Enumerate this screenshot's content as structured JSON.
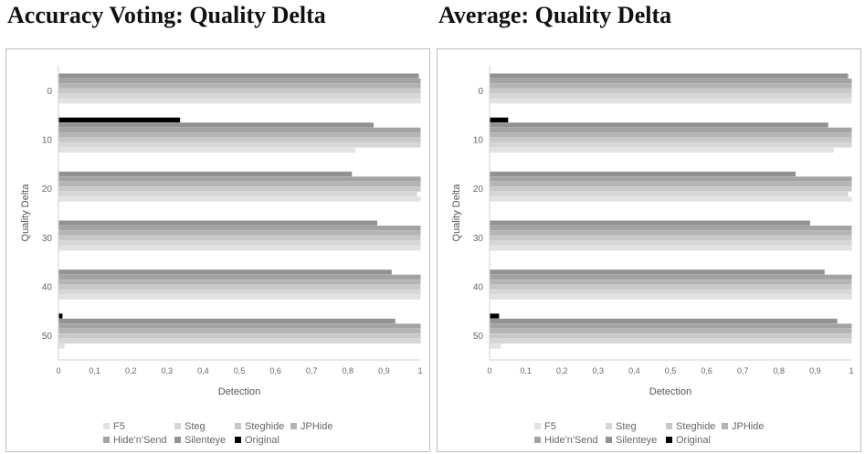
{
  "chart_data": [
    {
      "type": "bar",
      "orientation": "horizontal",
      "title": "Accuracy Voting: Quality Delta",
      "xlabel": "Detection",
      "ylabel": "Quality Delta",
      "xlim": [
        0,
        1
      ],
      "xticks": [
        "0",
        "0,1",
        "0,2",
        "0,3",
        "0,4",
        "0,5",
        "0,6",
        "0,7",
        "0,8",
        "0,9",
        "1"
      ],
      "categories": [
        "0",
        "10",
        "20",
        "30",
        "40",
        "50"
      ],
      "series": [
        {
          "name": "F5",
          "color": "#e2e2e2",
          "values": [
            1.0,
            0.82,
            1.0,
            1.0,
            1.0,
            0.015
          ]
        },
        {
          "name": "Steg",
          "color": "#d6d6d6",
          "values": [
            1.0,
            1.0,
            0.99,
            1.0,
            1.0,
            1.0
          ]
        },
        {
          "name": "Steghide",
          "color": "#c8c8c8",
          "values": [
            1.0,
            1.0,
            1.0,
            1.0,
            1.0,
            1.0
          ]
        },
        {
          "name": "JPHide",
          "color": "#b4b4b4",
          "values": [
            1.0,
            1.0,
            1.0,
            1.0,
            1.0,
            1.0
          ]
        },
        {
          "name": "Hide'n'Send",
          "color": "#a3a3a3",
          "values": [
            1.0,
            1.0,
            1.0,
            1.0,
            1.0,
            1.0
          ]
        },
        {
          "name": "Silenteye",
          "color": "#929292",
          "values": [
            0.995,
            0.87,
            0.81,
            0.88,
            0.92,
            0.93
          ]
        },
        {
          "name": "Original",
          "color": "#000000",
          "values": [
            0,
            0.335,
            0,
            0,
            0,
            0.01
          ]
        }
      ]
    },
    {
      "type": "bar",
      "orientation": "horizontal",
      "title": "Average: Quality Delta",
      "xlabel": "Detection",
      "ylabel": "Quality Delta",
      "xlim": [
        0,
        1
      ],
      "xticks": [
        "0",
        "0,1",
        "0,2",
        "0,3",
        "0,4",
        "0,5",
        "0,6",
        "0,7",
        "0,8",
        "0,9",
        "1"
      ],
      "categories": [
        "0",
        "10",
        "20",
        "30",
        "40",
        "50"
      ],
      "series": [
        {
          "name": "F5",
          "color": "#e2e2e2",
          "values": [
            1.0,
            0.95,
            1.0,
            1.0,
            1.0,
            0.03
          ]
        },
        {
          "name": "Steg",
          "color": "#d6d6d6",
          "values": [
            1.0,
            1.0,
            0.99,
            1.0,
            1.0,
            1.0
          ]
        },
        {
          "name": "Steghide",
          "color": "#c8c8c8",
          "values": [
            1.0,
            1.0,
            1.0,
            1.0,
            1.0,
            1.0
          ]
        },
        {
          "name": "JPHide",
          "color": "#b4b4b4",
          "values": [
            1.0,
            1.0,
            1.0,
            1.0,
            1.0,
            1.0
          ]
        },
        {
          "name": "Hide'n'Send",
          "color": "#a3a3a3",
          "values": [
            1.0,
            1.0,
            1.0,
            1.0,
            1.0,
            1.0
          ]
        },
        {
          "name": "Silenteye",
          "color": "#929292",
          "values": [
            0.99,
            0.935,
            0.845,
            0.885,
            0.925,
            0.96
          ]
        },
        {
          "name": "Original",
          "color": "#000000",
          "values": [
            0,
            0.05,
            0,
            0,
            0,
            0.025
          ]
        }
      ]
    }
  ]
}
